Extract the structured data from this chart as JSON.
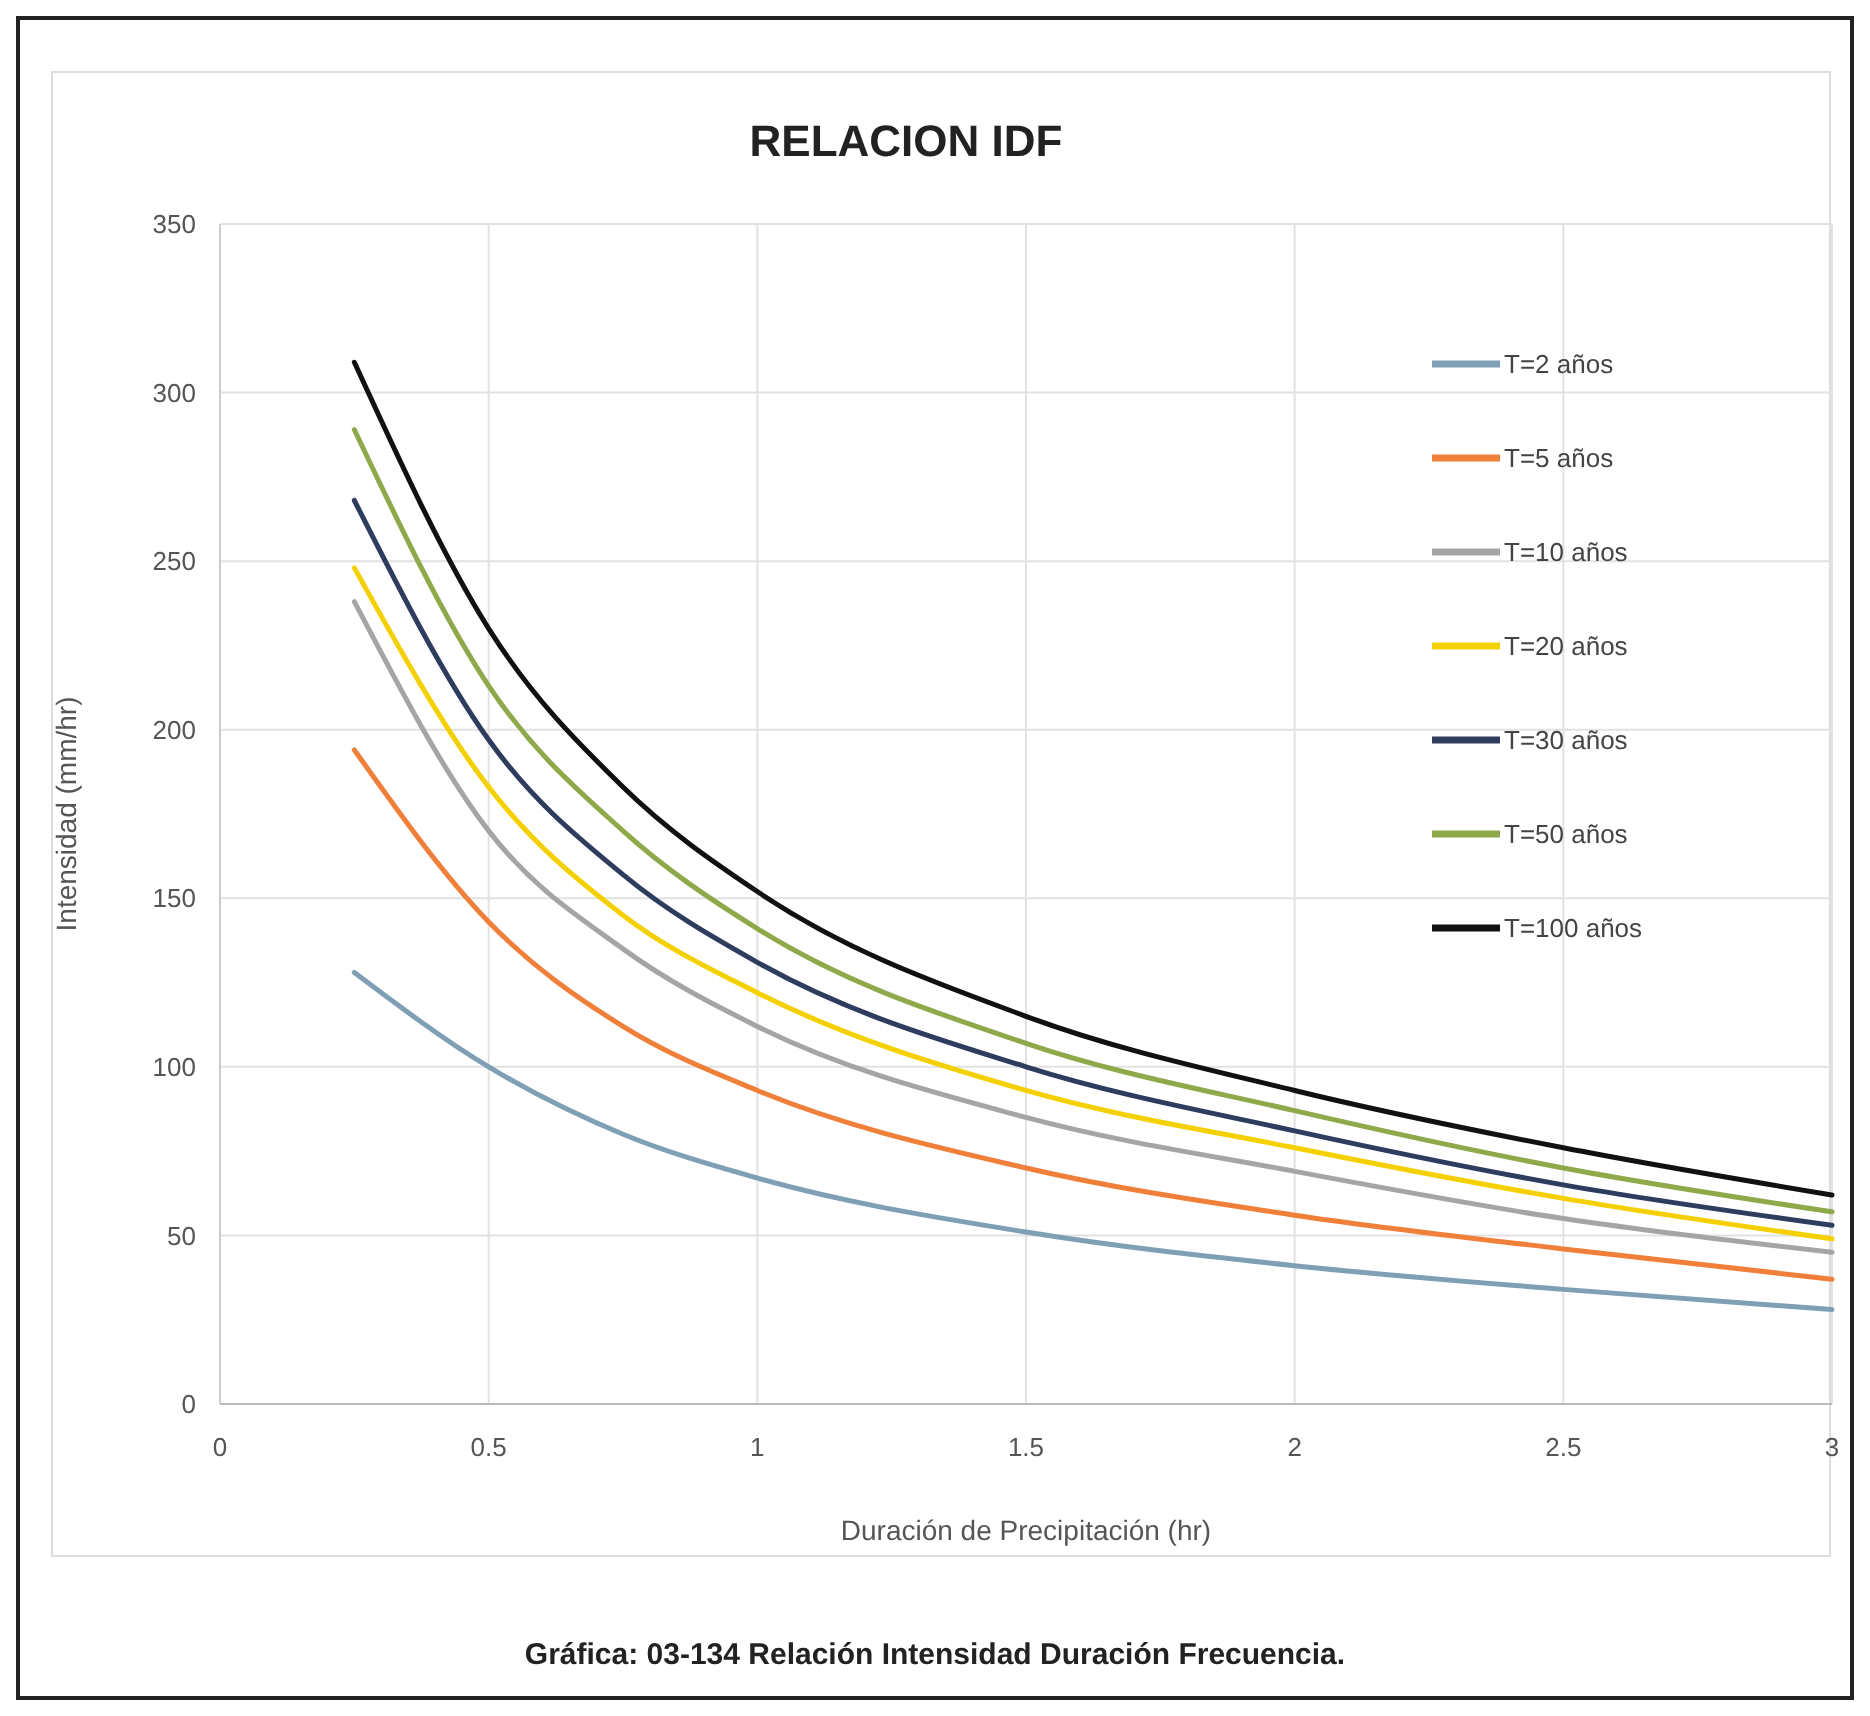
{
  "chart_data": {
    "type": "line",
    "title": "RELACION IDF",
    "xlabel": "Duración de Precipitación (hr)",
    "ylabel": "Intensidad (mm/hr)",
    "annotations": [
      "Gráfica: 03-134 Relación Intensidad Duración Frecuencia."
    ],
    "x": [
      0.25,
      0.5,
      0.75,
      1,
      1.5,
      2,
      2.5,
      3
    ],
    "series": [
      {
        "name": "T=2 años",
        "color": "#7f9fb5",
        "values": [
          128,
          100,
          80,
          67,
          51,
          41,
          34,
          28
        ]
      },
      {
        "name": "T=5 años",
        "color": "#f07f3a",
        "values": [
          194,
          143,
          112,
          93,
          70,
          56,
          46,
          37
        ]
      },
      {
        "name": "T=10 años",
        "color": "#a5a5a5",
        "values": [
          238,
          170,
          135,
          112,
          85,
          69,
          55,
          45
        ]
      },
      {
        "name": "T=20 años",
        "color": "#f5d000",
        "values": [
          248,
          183,
          145,
          122,
          93,
          76,
          61,
          49
        ]
      },
      {
        "name": "T=30 años",
        "color": "#2e3c5e",
        "values": [
          268,
          197,
          157,
          131,
          100,
          81,
          65,
          53
        ]
      },
      {
        "name": "T=50 años",
        "color": "#8fa84a",
        "values": [
          289,
          213,
          170,
          141,
          107,
          87,
          70,
          57
        ]
      },
      {
        "name": "T=100 años",
        "color": "#111111",
        "values": [
          309,
          230,
          183,
          152,
          115,
          93,
          76,
          62
        ]
      }
    ],
    "xlim": [
      0,
      3
    ],
    "xticks": [
      0,
      0.5,
      1,
      1.5,
      2,
      2.5,
      3
    ],
    "ylim": [
      0,
      350
    ],
    "yticks": [
      0,
      50,
      100,
      150,
      200,
      250,
      300,
      350
    ],
    "grid": true,
    "legend": "top right",
    "marker": "none",
    "line_style": "solid"
  }
}
